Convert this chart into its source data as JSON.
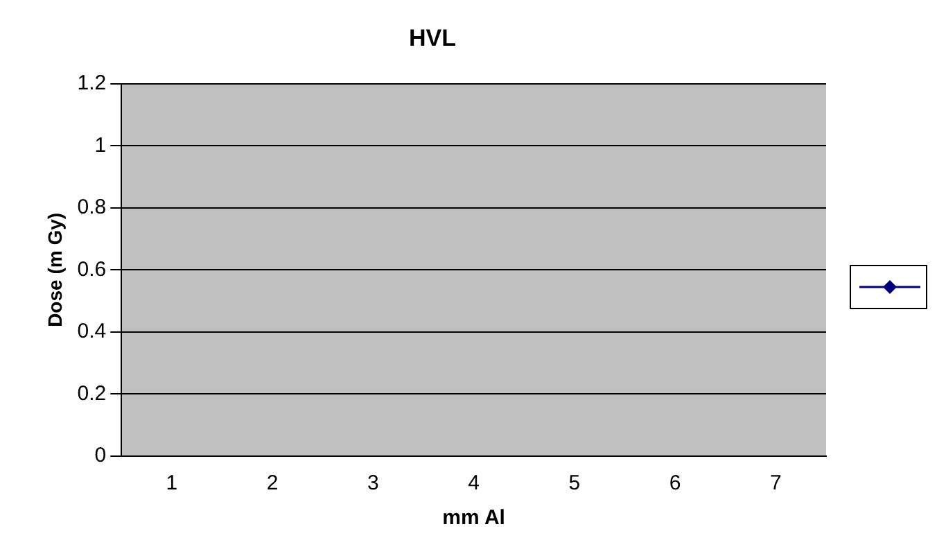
{
  "chart_data": {
    "type": "line",
    "title": "HVL",
    "xlabel": "mm Al",
    "ylabel": "Dose (m Gy)",
    "categories": [
      "1",
      "2",
      "3",
      "4",
      "5",
      "6",
      "7"
    ],
    "series": [
      {
        "color": "#000080",
        "values": [
          null,
          null,
          null,
          null,
          null,
          null,
          null
        ]
      }
    ],
    "ylim": [
      0,
      1.2
    ],
    "yticks": [
      0,
      0.2,
      0.4,
      0.6,
      0.8,
      1,
      1.2
    ],
    "grid": "y",
    "marker": "diamond",
    "line_style": "solid"
  }
}
